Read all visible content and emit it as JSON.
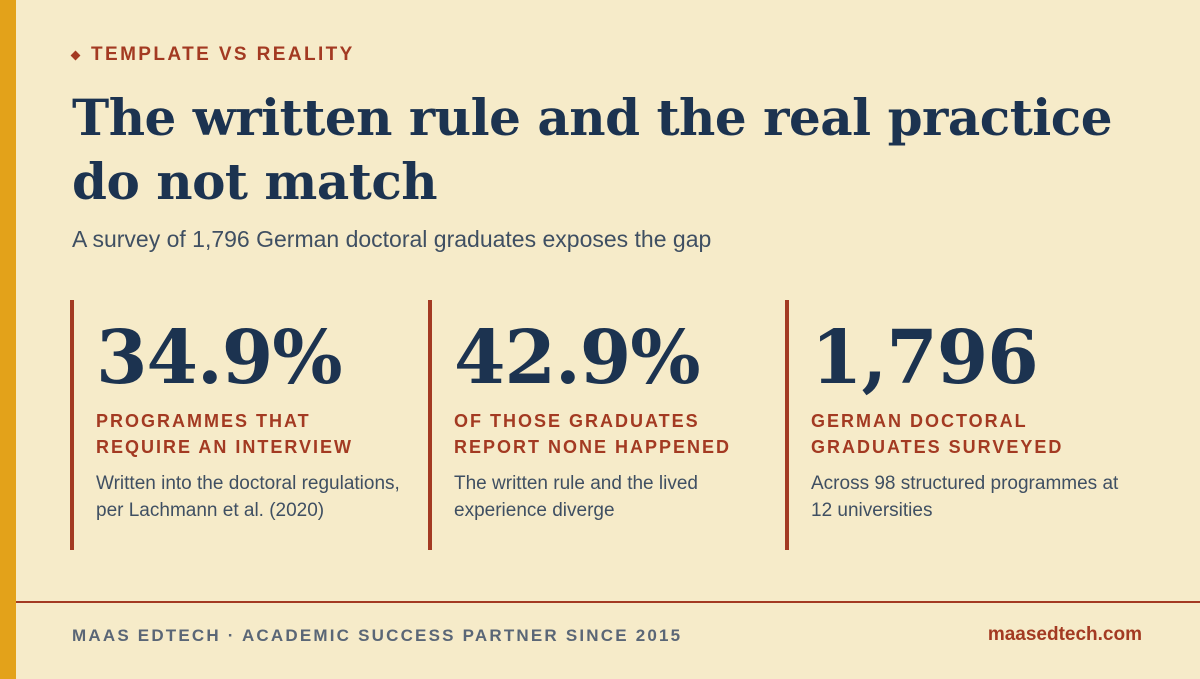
{
  "eyebrow": "TEMPLATE VS REALITY",
  "title": "The written rule and the real practice do not match",
  "subtitle": "A survey of 1,796 German doctoral graduates exposes the gap",
  "stats": [
    {
      "value": "34.9%",
      "label": "PROGRAMMES THAT REQUIRE AN INTERVIEW",
      "description": "Written into the doctoral regulations, per Lachmann et al. (2020)"
    },
    {
      "value": "42.9%",
      "label": "OF THOSE GRADUATES REPORT NONE HAPPENED",
      "description": "The written rule and the lived experience diverge"
    },
    {
      "value": "1,796",
      "label": "GERMAN DOCTORAL GRADUATES SURVEYED",
      "description": "Across 98 structured programmes at 12 universities"
    }
  ],
  "footer": {
    "tagline": "MAAS EDTECH · ACADEMIC SUCCESS PARTNER SINCE 2015",
    "website": "maasedtech.com"
  },
  "colors": {
    "background": "#f6ebc9",
    "accent_bar": "#e3a21a",
    "accent_red": "#a33a22",
    "navy": "#1c3350",
    "body_text": "#3f4f62"
  }
}
